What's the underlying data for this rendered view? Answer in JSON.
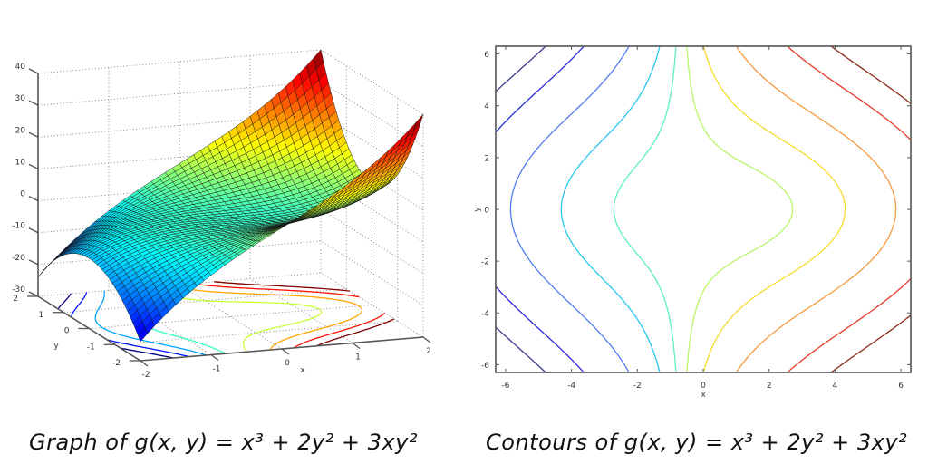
{
  "chart_data": [
    {
      "type": "surface3d",
      "function": "g(x, y) = x^3 + 2y^2 + 3xy^2",
      "title": "Graph of g(x, y) = x³ + 2y² + 3xy²",
      "xlabel": "x",
      "ylabel": "y",
      "zlabel": "",
      "xlim": [
        -2,
        2
      ],
      "ylim": [
        -2,
        2
      ],
      "zlim": [
        -30,
        40
      ],
      "x_ticks": [
        "-2",
        "-1",
        "0",
        "1",
        "2"
      ],
      "y_ticks": [
        "-2",
        "-1",
        "0",
        "1",
        "2"
      ],
      "z_ticks": [
        "-30",
        "-20",
        "-10",
        "0",
        "10",
        "20",
        "30",
        "40"
      ],
      "grid": true,
      "colormap": "jet",
      "floor_contours": true
    },
    {
      "type": "contour",
      "function": "g(x, y) = x^3 + 2y^2 + 3xy^2",
      "title": "Contours of g(x, y) = x³ + 2y² + 3xy²",
      "xlabel": "x",
      "ylabel": "y",
      "xlim": [
        -6.3,
        6.3
      ],
      "ylim": [
        -6.3,
        6.3
      ],
      "x_ticks": [
        "-6",
        "-4",
        "-2",
        "0",
        "2",
        "4",
        "6"
      ],
      "y_ticks": [
        "-6",
        "-4",
        "-2",
        "0",
        "2",
        "4",
        "6"
      ],
      "levels": [
        -600,
        -400,
        -200,
        -80,
        -20,
        20,
        80,
        200,
        400,
        600
      ],
      "level_colors": [
        "#3b3b8f",
        "#2b2bd9",
        "#4f7cf0",
        "#29c8f0",
        "#5ef0c0",
        "#b8f56a",
        "#f5dc30",
        "#f59a40",
        "#e83a2a",
        "#8b2a1a"
      ],
      "grid": false,
      "colormap": "jet"
    }
  ],
  "captions": {
    "left": "Graph of g(x, y) = x³ + 2y² + 3xy²",
    "right": "Contours of g(x, y) = x³ + 2y² + 3xy²"
  },
  "axis_labels": {
    "surface_x": "x",
    "surface_y": "y",
    "contour_x": "x",
    "contour_y": "y"
  }
}
